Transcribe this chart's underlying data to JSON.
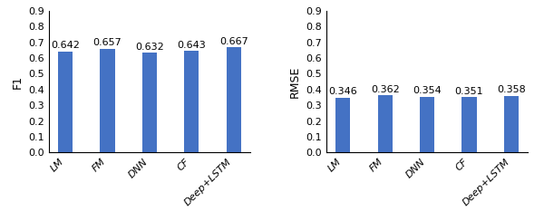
{
  "categories": [
    "LM",
    "FM",
    "DNN",
    "CF",
    "Deep+LSTM"
  ],
  "f1_values": [
    0.642,
    0.657,
    0.632,
    0.643,
    0.667
  ],
  "rmse_values": [
    0.346,
    0.362,
    0.354,
    0.351,
    0.358
  ],
  "bar_color": "#4472C4",
  "f1_ylabel": "F1",
  "rmse_ylabel": "RMSE",
  "ylim": [
    0,
    0.9
  ],
  "yticks": [
    0,
    0.1,
    0.2,
    0.3,
    0.4,
    0.5,
    0.6,
    0.7,
    0.8,
    0.9
  ],
  "bar_width": 0.35,
  "label_fontsize": 9,
  "tick_fontsize": 8,
  "value_fontsize": 8
}
